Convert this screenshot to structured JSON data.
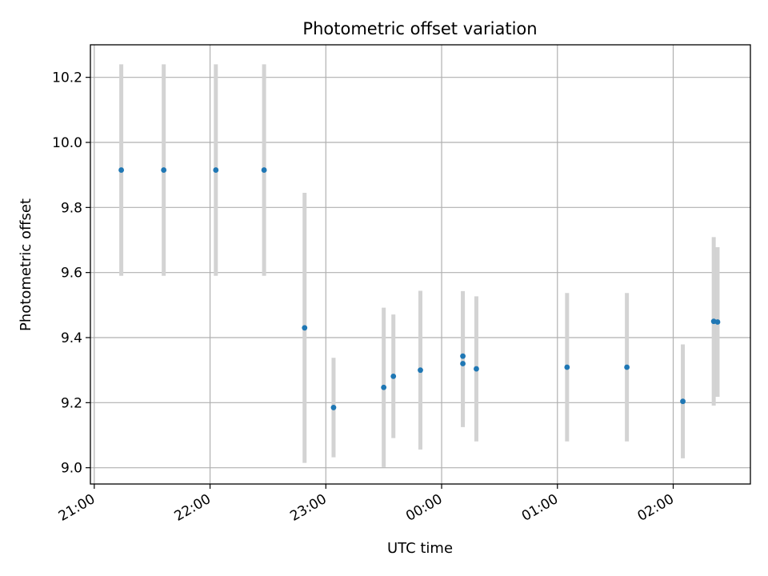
{
  "chart_data": {
    "type": "scatter",
    "title": "Photometric offset variation",
    "xlabel": "UTC time",
    "ylabel": "Photometric offset",
    "x_ticks": [
      "21:00",
      "22:00",
      "23:00",
      "00:00",
      "01:00",
      "02:00"
    ],
    "y_ticks": [
      "9.0",
      "9.2",
      "9.4",
      "9.6",
      "9.8",
      "10.0",
      "10.2"
    ],
    "xlim": [
      "20:58",
      "02:40"
    ],
    "ylim": [
      8.95,
      10.3
    ],
    "grid": true,
    "colors": {
      "point": "#1f77b4",
      "errorbar": "#d3d3d3",
      "grid": "#b0b0b0"
    },
    "points": [
      {
        "time": "21:14",
        "y": 9.915,
        "err": 0.325
      },
      {
        "time": "21:36",
        "y": 9.915,
        "err": 0.325
      },
      {
        "time": "22:03",
        "y": 9.915,
        "err": 0.325
      },
      {
        "time": "22:28",
        "y": 9.915,
        "err": 0.325
      },
      {
        "time": "22:49",
        "y": 9.43,
        "err": 0.415
      },
      {
        "time": "23:04",
        "y": 9.185,
        "err": 0.153
      },
      {
        "time": "23:30",
        "y": 9.247,
        "err": 0.245
      },
      {
        "time": "23:35",
        "y": 9.281,
        "err": 0.19
      },
      {
        "time": "23:49",
        "y": 9.3,
        "err": 0.244
      },
      {
        "time": "00:11",
        "y": 9.343,
        "err": 0.2
      },
      {
        "time": "00:11",
        "y": 9.32,
        "err": 0.195
      },
      {
        "time": "00:18",
        "y": 9.304,
        "err": 0.223
      },
      {
        "time": "01:05",
        "y": 9.309,
        "err": 0.228
      },
      {
        "time": "01:36",
        "y": 9.309,
        "err": 0.228
      },
      {
        "time": "02:05",
        "y": 9.204,
        "err": 0.175
      },
      {
        "time": "02:21",
        "y": 9.45,
        "err": 0.259
      },
      {
        "time": "02:23",
        "y": 9.448,
        "err": 0.23
      }
    ]
  }
}
